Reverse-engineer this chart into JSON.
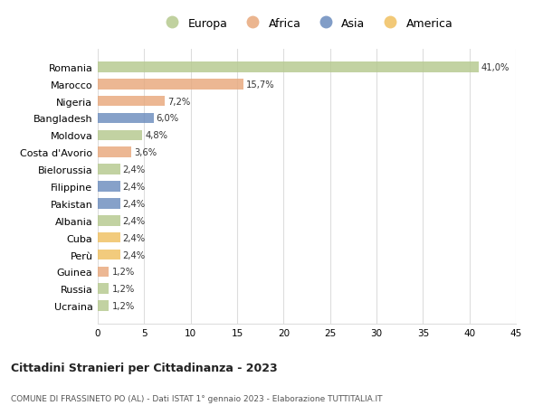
{
  "countries": [
    "Romania",
    "Marocco",
    "Nigeria",
    "Bangladesh",
    "Moldova",
    "Costa d'Avorio",
    "Bielorussia",
    "Filippine",
    "Pakistan",
    "Albania",
    "Cuba",
    "Perù",
    "Guinea",
    "Russia",
    "Ucraina"
  ],
  "values": [
    41.0,
    15.7,
    7.2,
    6.0,
    4.8,
    3.6,
    2.4,
    2.4,
    2.4,
    2.4,
    2.4,
    2.4,
    1.2,
    1.2,
    1.2
  ],
  "labels": [
    "41,0%",
    "15,7%",
    "7,2%",
    "6,0%",
    "4,8%",
    "3,6%",
    "2,4%",
    "2,4%",
    "2,4%",
    "2,4%",
    "2,4%",
    "2,4%",
    "1,2%",
    "1,2%",
    "1,2%"
  ],
  "regions": [
    "Europa",
    "Africa",
    "Africa",
    "Asia",
    "Europa",
    "Africa",
    "Europa",
    "Asia",
    "Asia",
    "Europa",
    "America",
    "America",
    "Africa",
    "Europa",
    "Europa"
  ],
  "colors": {
    "Europa": "#b5c98e",
    "Africa": "#e8a87c",
    "Asia": "#6b8cbe",
    "America": "#f0c060"
  },
  "legend_order": [
    "Europa",
    "Africa",
    "Asia",
    "America"
  ],
  "title": "Cittadini Stranieri per Cittadinanza - 2023",
  "subtitle": "COMUNE DI FRASSINETO PO (AL) - Dati ISTAT 1° gennaio 2023 - Elaborazione TUTTITALIA.IT",
  "xlim": [
    0,
    45
  ],
  "xticks": [
    0,
    5,
    10,
    15,
    20,
    25,
    30,
    35,
    40,
    45
  ],
  "background_color": "#ffffff",
  "grid_color": "#dddddd"
}
